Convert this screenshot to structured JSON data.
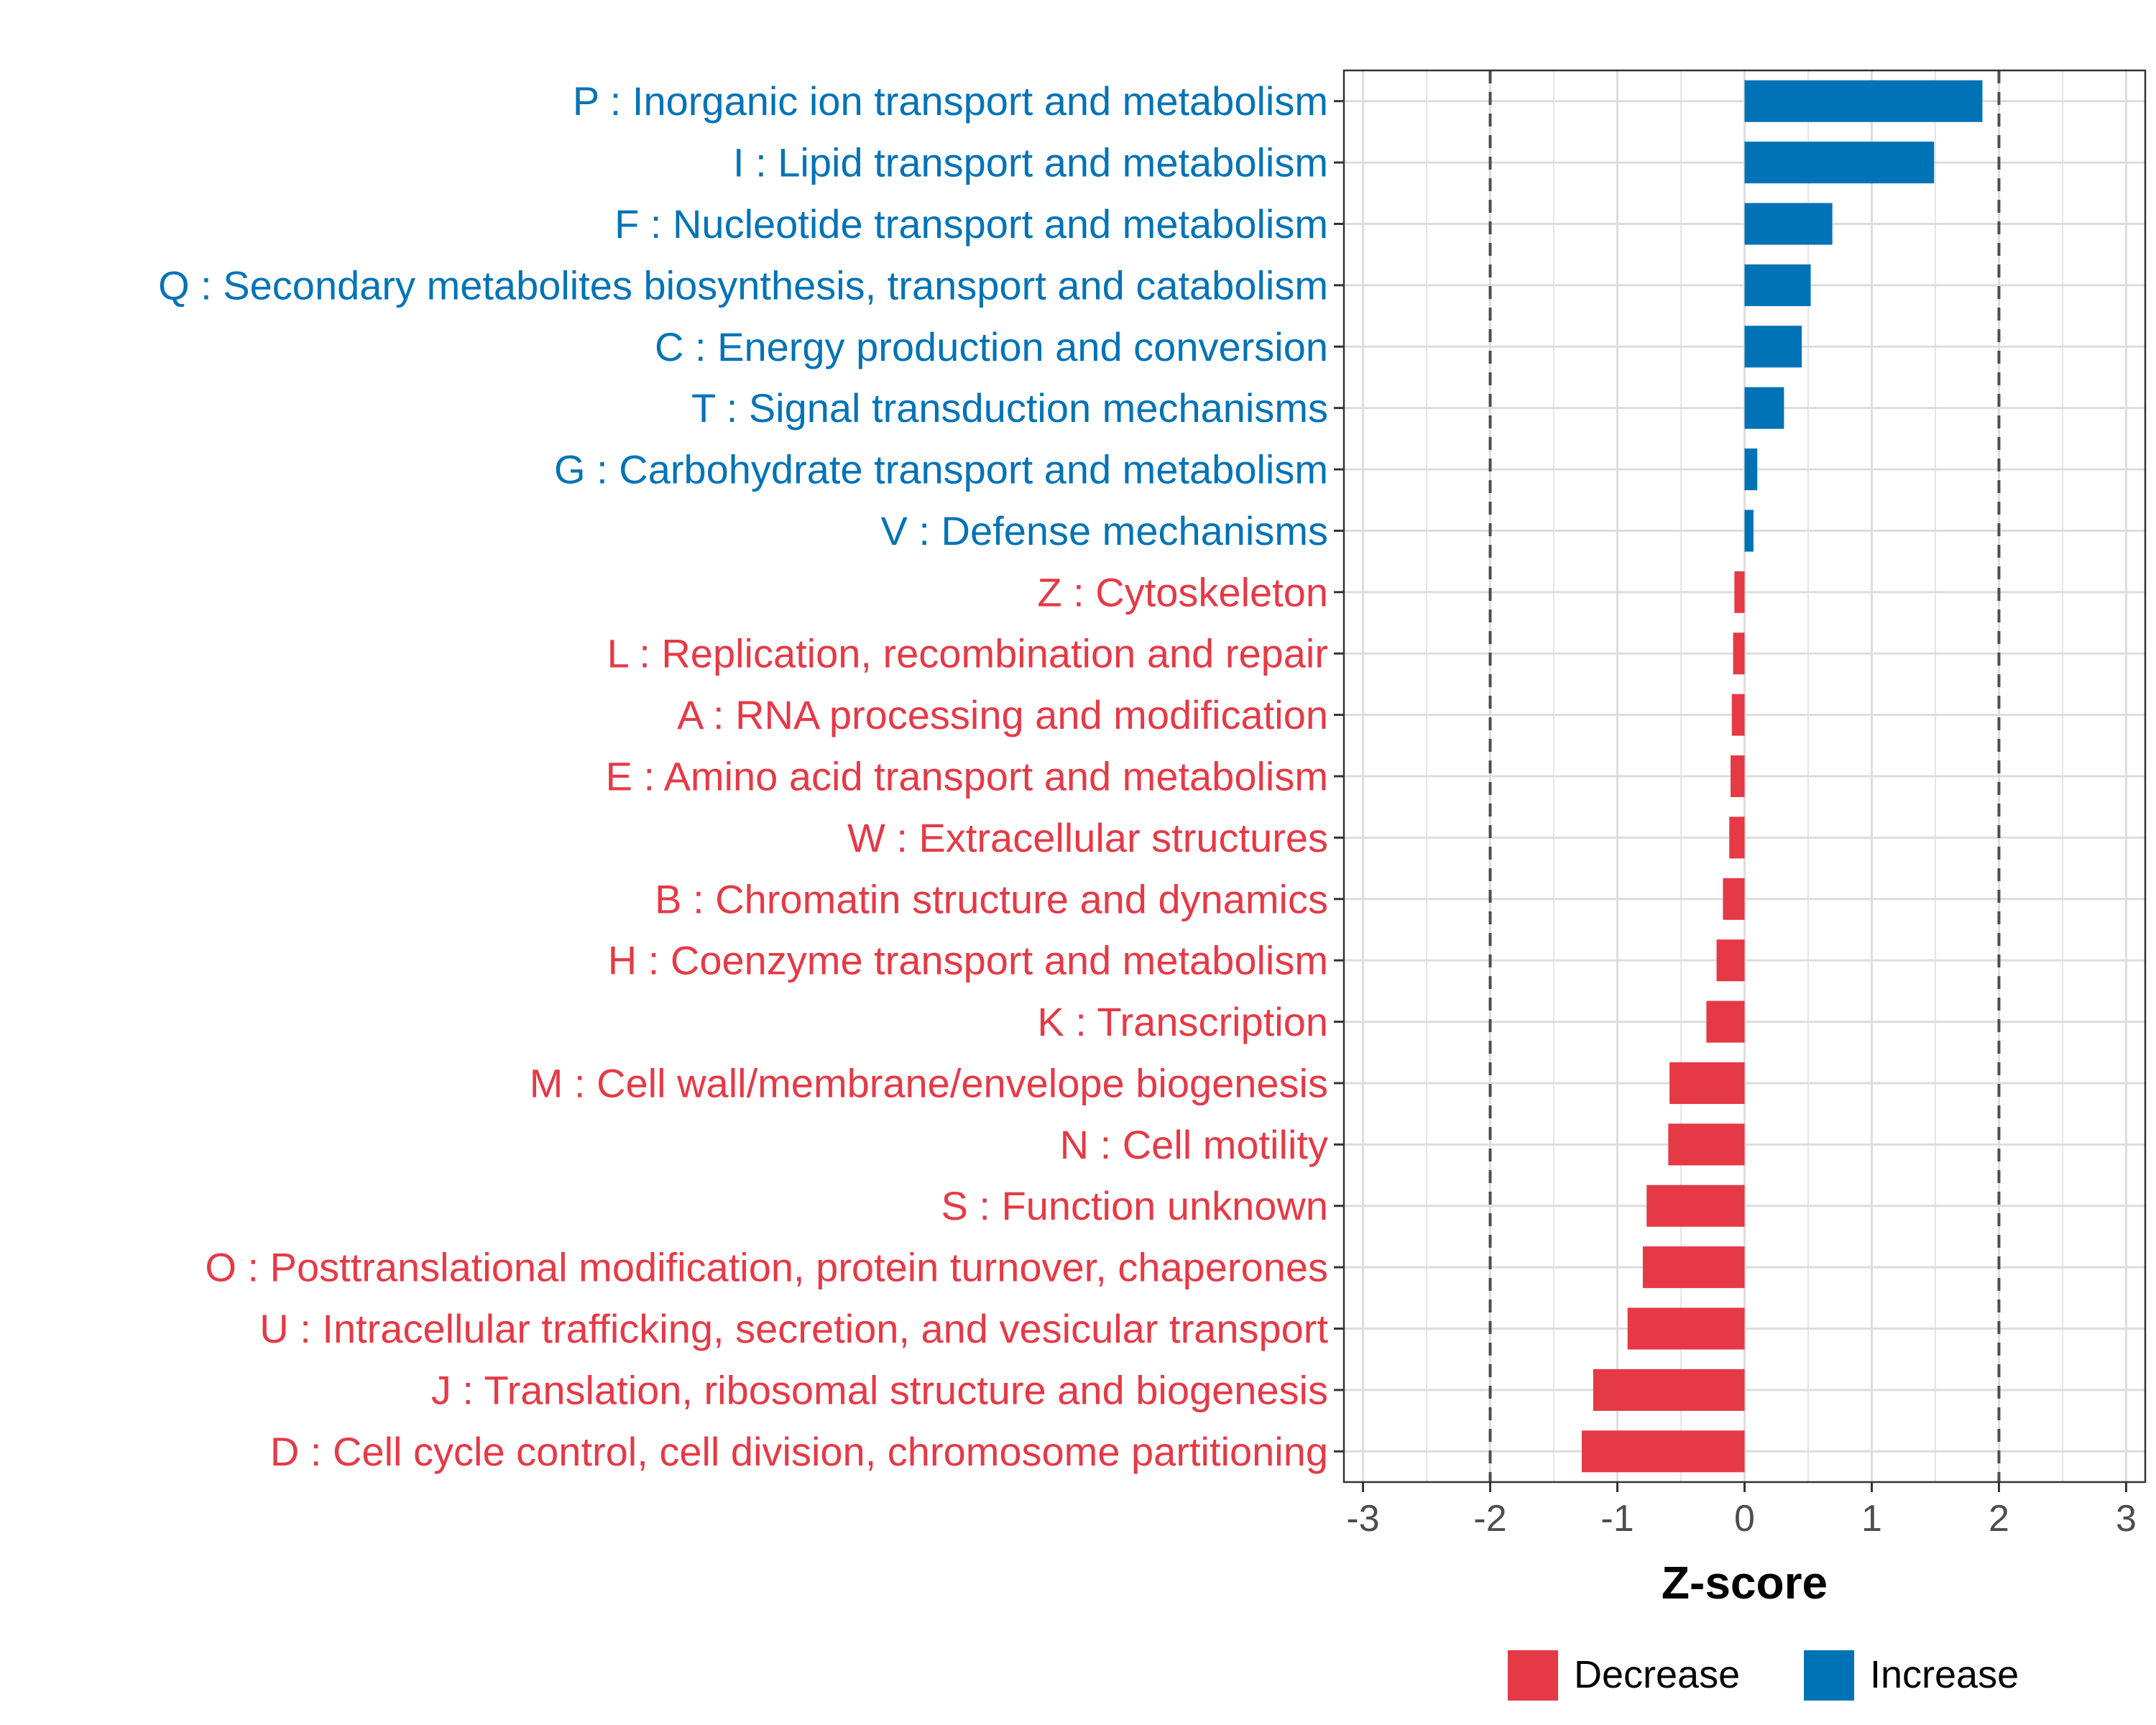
{
  "chart_data": {
    "type": "bar",
    "orientation": "horizontal",
    "title": "",
    "xlabel": "Z-score",
    "ylabel": "",
    "xlim": [
      -3.15,
      3.15
    ],
    "xticks": [
      -3,
      -2,
      -1,
      0,
      1,
      2,
      3
    ],
    "reference_lines": [
      -2,
      2
    ],
    "grid": true,
    "legend_position": "bottom",
    "colors": {
      "Increase": "#0073b7",
      "Decrease": "#e63946"
    },
    "legend": [
      {
        "name": "Decrease",
        "color": "#e63946"
      },
      {
        "name": "Increase",
        "color": "#0073b7"
      }
    ],
    "categories": [
      "P : Inorganic ion transport and metabolism",
      "I : Lipid transport and metabolism",
      "F : Nucleotide transport and metabolism",
      "Q : Secondary metabolites biosynthesis, transport and catabolism",
      "C : Energy production and conversion",
      "T : Signal transduction mechanisms",
      "G : Carbohydrate transport and metabolism",
      "V : Defense mechanisms",
      "Z : Cytoskeleton",
      "L : Replication, recombination and repair",
      "A : RNA processing and modification",
      "E : Amino acid transport and metabolism",
      "W : Extracellular structures",
      "B : Chromatin structure and dynamics",
      "H : Coenzyme transport and metabolism",
      "K : Transcription",
      "M : Cell wall/membrane/envelope biogenesis",
      "N : Cell motility",
      "S : Function unknown",
      "O : Posttranslational modification, protein turnover, chaperones",
      "U : Intracellular trafficking, secretion, and vesicular transport",
      "J : Translation, ribosomal structure and biogenesis",
      "D : Cell cycle control, cell division, chromosome partitioning"
    ],
    "values": [
      1.87,
      1.49,
      0.69,
      0.52,
      0.45,
      0.31,
      0.1,
      0.07,
      -0.08,
      -0.09,
      -0.1,
      -0.11,
      -0.12,
      -0.17,
      -0.22,
      -0.3,
      -0.59,
      -0.6,
      -0.77,
      -0.8,
      -0.92,
      -1.19,
      -1.28
    ],
    "groups": [
      "Increase",
      "Increase",
      "Increase",
      "Increase",
      "Increase",
      "Increase",
      "Increase",
      "Increase",
      "Decrease",
      "Decrease",
      "Decrease",
      "Decrease",
      "Decrease",
      "Decrease",
      "Decrease",
      "Decrease",
      "Decrease",
      "Decrease",
      "Decrease",
      "Decrease",
      "Decrease",
      "Decrease",
      "Decrease"
    ]
  }
}
